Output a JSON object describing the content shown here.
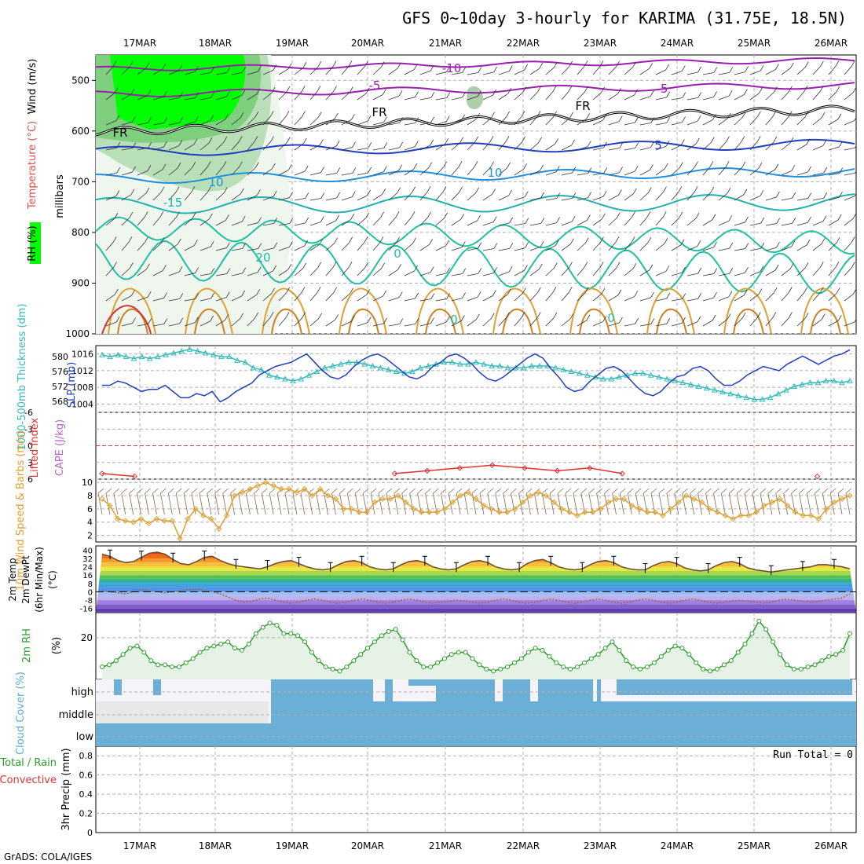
{
  "title": "GFS 0~10day 3-hourly for KARIMA (31.75E, 18.5N)",
  "footer": "GrADS: COLA/IGES",
  "colors": {
    "grid": "#b0b0b0",
    "rh_green": "#00ff00",
    "slp": "#1f3fbf",
    "thickness": "#33bbbb",
    "lifted": "#dd3333",
    "wind_speed": "#e0a030",
    "cloud_blue": "#6baed6",
    "rh_fill": "#e6f2e6",
    "rh_line": "#2e9e2e"
  },
  "chart_data": [
    {
      "type": "line",
      "panel": "upper-air cross-section",
      "ylabel_parts": [
        "Wind (m/s)",
        "Temperature (°C)",
        "RH (%)"
      ],
      "ylabel_units": "millibars",
      "dates": [
        "17MAR",
        "18MAR",
        "19MAR",
        "20MAR",
        "21MAR",
        "22MAR",
        "23MAR",
        "24MAR",
        "25MAR",
        "26MAR"
      ],
      "y_ticks": [
        500,
        600,
        700,
        800,
        900,
        1000
      ],
      "contour_labels": [
        "-10",
        "-5",
        "-5",
        "FR",
        "FR",
        "FR",
        "5",
        "10",
        "10",
        "-15",
        "20",
        "0",
        "0",
        "0"
      ],
      "ylim": [
        450,
        1000
      ]
    },
    {
      "type": "line",
      "panel": "pressure",
      "ylabel_left": "1000-500mb Thickness (dm)",
      "ylabel_right": "SLP (mb)",
      "left_ticks": [
        568,
        572,
        576,
        580
      ],
      "right_ticks": [
        1004,
        1008,
        1012,
        1016
      ],
      "series": [
        {
          "name": "SLP (mb)",
          "values": [
            1008.5,
            1008.5,
            1009.5,
            1009,
            1008,
            1007,
            1007.5,
            1007.5,
            1008.5,
            1007,
            1005.5,
            1005.5,
            1006.5,
            1006,
            1007,
            1004.5,
            1005.5,
            1007,
            1008,
            1009,
            1011,
            1012,
            1013,
            1013.5,
            1014,
            1015,
            1016,
            1014,
            1012,
            1010.5,
            1010,
            1011,
            1013,
            1014.5,
            1015.5,
            1016,
            1015,
            1013.5,
            1012,
            1010.5,
            1010,
            1011,
            1013,
            1014,
            1015.5,
            1016,
            1015,
            1013.5,
            1011.5,
            1010,
            1009.5,
            1010.5,
            1012,
            1013.5,
            1015,
            1016,
            1015,
            1012.5,
            1010.5,
            1008,
            1007,
            1007.5,
            1009.5,
            1011,
            1012.5,
            1013,
            1012,
            1010,
            1008,
            1006.5,
            1006,
            1007,
            1009,
            1010.5,
            1011,
            1012.5,
            1013,
            1012,
            1010,
            1008.5,
            1008.5,
            1009.5,
            1011,
            1012,
            1013,
            1012.5,
            1012,
            1013.5,
            1014.5,
            1015.5,
            1014.5,
            1013.5,
            1014.5,
            1015.5,
            1016,
            1017
          ]
        },
        {
          "name": "1000-500mb Thickness (dm)",
          "values": [
            580.5,
            580,
            580.5,
            580,
            579.5,
            580,
            579.5,
            580,
            580.5,
            581,
            581.5,
            582,
            581.5,
            581,
            580.5,
            580,
            580,
            579,
            578.5,
            577,
            576.5,
            575,
            574.5,
            574,
            573.5,
            574,
            575,
            576,
            577,
            577.5,
            578,
            578.5,
            578.5,
            578,
            577.5,
            577,
            576.5,
            576,
            575.5,
            576,
            577,
            577.5,
            578,
            578.5,
            578.5,
            578,
            578,
            578.5,
            578,
            577.5,
            577.5,
            577,
            577,
            577,
            577.5,
            577.5,
            577.5,
            577,
            576.5,
            576,
            575.5,
            575,
            574.5,
            574,
            574,
            574.5,
            575,
            575.5,
            575.5,
            575,
            574.5,
            574,
            573.5,
            573,
            572.5,
            572,
            571.5,
            571,
            570.5,
            570,
            569.5,
            569,
            568.5,
            568.5,
            569,
            570,
            571,
            572,
            572.5,
            573,
            573,
            573.5,
            573.5,
            573,
            573.5
          ]
        }
      ]
    },
    {
      "type": "line",
      "panel": "stability",
      "ylabel_left": "Lifted Index",
      "ylabel_right": "CAPE (J/kg)",
      "left_ticks": [
        "-6",
        "-3",
        "0",
        "3",
        "6"
      ],
      "series": [
        {
          "name": "Lifted Index",
          "values": [
            5,
            5.5,
            null,
            null,
            null,
            null,
            null,
            null,
            null,
            5,
            4.5,
            4,
            3.5,
            4,
            4.5,
            4,
            5,
            null,
            null,
            null,
            null,
            null,
            5.5,
            null
          ]
        }
      ]
    },
    {
      "type": "line",
      "panel": "wind",
      "ylabel": "10m Wind Speed & Barbs (m/s)",
      "y_ticks": [
        2,
        4,
        6,
        8,
        10
      ],
      "series": [
        {
          "name": "10m Wind Speed",
          "values": [
            7.5,
            6.5,
            4.5,
            4.2,
            4,
            4.5,
            3.8,
            4.5,
            4.2,
            4.2,
            1.5,
            4.5,
            6,
            5,
            4.5,
            3,
            5,
            8,
            8.5,
            9,
            9.5,
            10,
            9.5,
            9,
            9,
            8.5,
            9,
            8,
            9,
            8,
            7.5,
            6,
            6,
            5.5,
            5.5,
            7,
            7.5,
            7.5,
            8,
            7,
            6,
            5.5,
            5.5,
            5.5,
            6,
            7,
            8,
            8.5,
            7.5,
            6.5,
            6,
            5.5,
            5.5,
            6,
            7,
            8,
            8.5,
            8,
            7,
            6,
            5.5,
            5,
            5.5,
            5.5,
            6,
            7,
            7.5,
            7.5,
            6.5,
            6,
            5.5,
            5.5,
            5,
            6,
            7,
            8,
            7.5,
            7,
            6,
            5.5,
            5,
            4.5,
            5,
            5,
            5.5,
            6.5,
            7,
            7.5,
            6.5,
            5.5,
            5,
            5,
            4.5,
            6,
            7,
            7.5,
            8
          ]
        }
      ]
    },
    {
      "type": "area",
      "panel": "temperature",
      "ylabel_parts": [
        "2m Temp",
        "2m DewPt",
        "(6hr Min/Max)",
        "(°C)"
      ],
      "y_ticks": [
        -16,
        -8,
        0,
        8,
        16,
        24,
        32,
        40
      ],
      "series": [
        {
          "name": "2m Temp",
          "values": [
            36,
            34,
            30,
            28,
            29,
            33,
            37,
            38,
            36,
            31,
            27,
            26,
            29,
            33,
            34,
            30,
            27,
            25,
            24,
            23,
            22,
            24,
            27,
            29,
            30,
            27,
            24,
            22,
            21,
            22,
            26,
            29,
            30,
            28,
            24,
            22,
            21,
            22,
            26,
            29,
            30,
            28,
            24,
            22,
            21,
            22,
            26,
            29,
            30,
            28,
            24,
            22,
            21,
            22,
            27,
            30,
            31,
            28,
            24,
            22,
            21,
            22,
            26,
            29,
            30,
            28,
            24,
            22,
            21,
            21,
            25,
            28,
            29,
            27,
            23,
            21,
            20,
            21,
            25,
            28,
            29,
            27,
            23,
            21,
            20,
            19,
            20,
            21,
            22,
            23,
            24,
            26,
            26,
            25,
            24,
            22
          ]
        },
        {
          "name": "2m DewPt",
          "values": [
            1,
            0,
            -1,
            -2,
            0,
            2,
            1,
            0,
            -1,
            0,
            1,
            2,
            3,
            1,
            0,
            -2,
            -5,
            -8,
            -10,
            -9,
            -7,
            -6,
            -8,
            -10,
            -11,
            -10,
            -8,
            -7,
            -8,
            -10,
            -11,
            -10,
            -8,
            -7,
            -8,
            -10,
            -11,
            -10,
            -8,
            -7,
            -8,
            -10,
            -11,
            -10,
            -9,
            -8,
            -9,
            -10,
            -11,
            -10,
            -8,
            -7,
            -8,
            -10,
            -11,
            -10,
            -8,
            -7,
            -8,
            -10,
            -11,
            -10,
            -8,
            -7,
            -8,
            -10,
            -11,
            -10,
            -8,
            -7,
            -8,
            -10,
            -11,
            -10,
            -8,
            -7,
            -8,
            -10,
            -11,
            -10,
            -9,
            -8,
            -9,
            -10,
            -11,
            -10,
            -8,
            -7,
            -8,
            -9,
            -10,
            -9,
            -8,
            -7,
            -6,
            -2
          ]
        }
      ]
    },
    {
      "type": "area",
      "panel": "rh",
      "ylabel_parts": [
        "2m RH",
        "(%)"
      ],
      "y_ticks": [
        20
      ],
      "series": [
        {
          "name": "2m RH",
          "values": [
            6,
            7,
            9,
            12,
            15,
            16,
            13,
            9,
            7,
            7,
            6,
            6,
            8,
            10,
            13,
            15,
            16,
            17,
            18,
            15,
            14,
            17,
            22,
            25,
            27,
            26,
            22,
            22,
            21,
            18,
            13,
            9,
            6,
            5,
            4,
            6,
            9,
            12,
            15,
            18,
            21,
            23,
            24,
            19,
            13,
            9,
            6,
            6,
            8,
            10,
            12,
            13,
            13,
            10,
            7,
            5,
            4,
            5,
            6,
            8,
            10,
            13,
            15,
            14,
            11,
            8,
            6,
            5,
            6,
            8,
            10,
            12,
            15,
            18,
            14,
            9,
            6,
            5,
            6,
            8,
            11,
            14,
            16,
            15,
            12,
            8,
            5,
            4,
            5,
            7,
            9,
            13,
            17,
            22,
            28,
            24,
            18,
            12,
            7,
            5,
            5,
            6,
            7,
            9,
            11,
            12,
            14,
            22
          ]
        }
      ]
    },
    {
      "type": "bar",
      "panel": "cloud",
      "ylabel": "Cloud Cover (%)",
      "levels": [
        "high",
        "middle",
        "low"
      ]
    },
    {
      "type": "line",
      "panel": "precip",
      "ylabel": "3hr Precip (mm)",
      "ylabel_parts": [
        "Total / Rain",
        "Convective"
      ],
      "run_total": "Run Total = 0",
      "y_ticks": [
        "0",
        "0.2",
        "0.4",
        "0.6",
        "0.8"
      ],
      "ylim": [
        0,
        0.9
      ]
    }
  ]
}
